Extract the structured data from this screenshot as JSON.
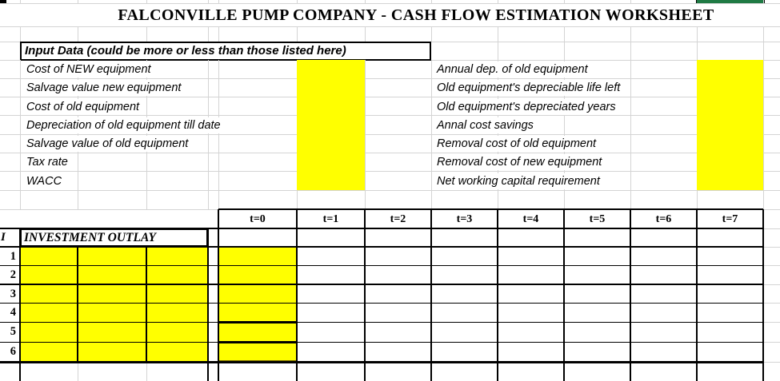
{
  "title": "FALCONVILLE PUMP COMPANY - CASH FLOW ESTIMATION WORKSHEET",
  "input_section": {
    "header": "Input Data (could be more or less than those listed here)",
    "left_labels": [
      "Cost of NEW equipment",
      "Salvage value new equipment",
      "Cost of old equipment",
      "Depreciation of old equipment till date",
      "Salvage value of old equipment",
      "Tax rate",
      "WACC"
    ],
    "right_labels": [
      "Annual dep. of old equipment",
      "Old equipment's depreciable life left",
      "Old equipment's depreciated years",
      " Annal cost savings",
      "Removal cost of old equipment",
      "Removal cost of new equipment",
      "Net working capital requirement"
    ]
  },
  "table": {
    "time_headers": [
      "t=0",
      "t=1",
      "t=2",
      "t=3",
      "t=4",
      "t=5",
      "t=6",
      "t=7"
    ],
    "section_index": "I",
    "section_title": "INVESTMENT OUTLAY",
    "row_numbers": [
      "1",
      "2",
      "3",
      "4",
      "5",
      "6"
    ]
  },
  "colors": {
    "highlight_yellow": "#ffff00",
    "gridline_gray": "#d4d4d4",
    "border_black": "#000000",
    "top_accent_green": "#1f7a44",
    "divider_olive": "#7a6a00"
  }
}
